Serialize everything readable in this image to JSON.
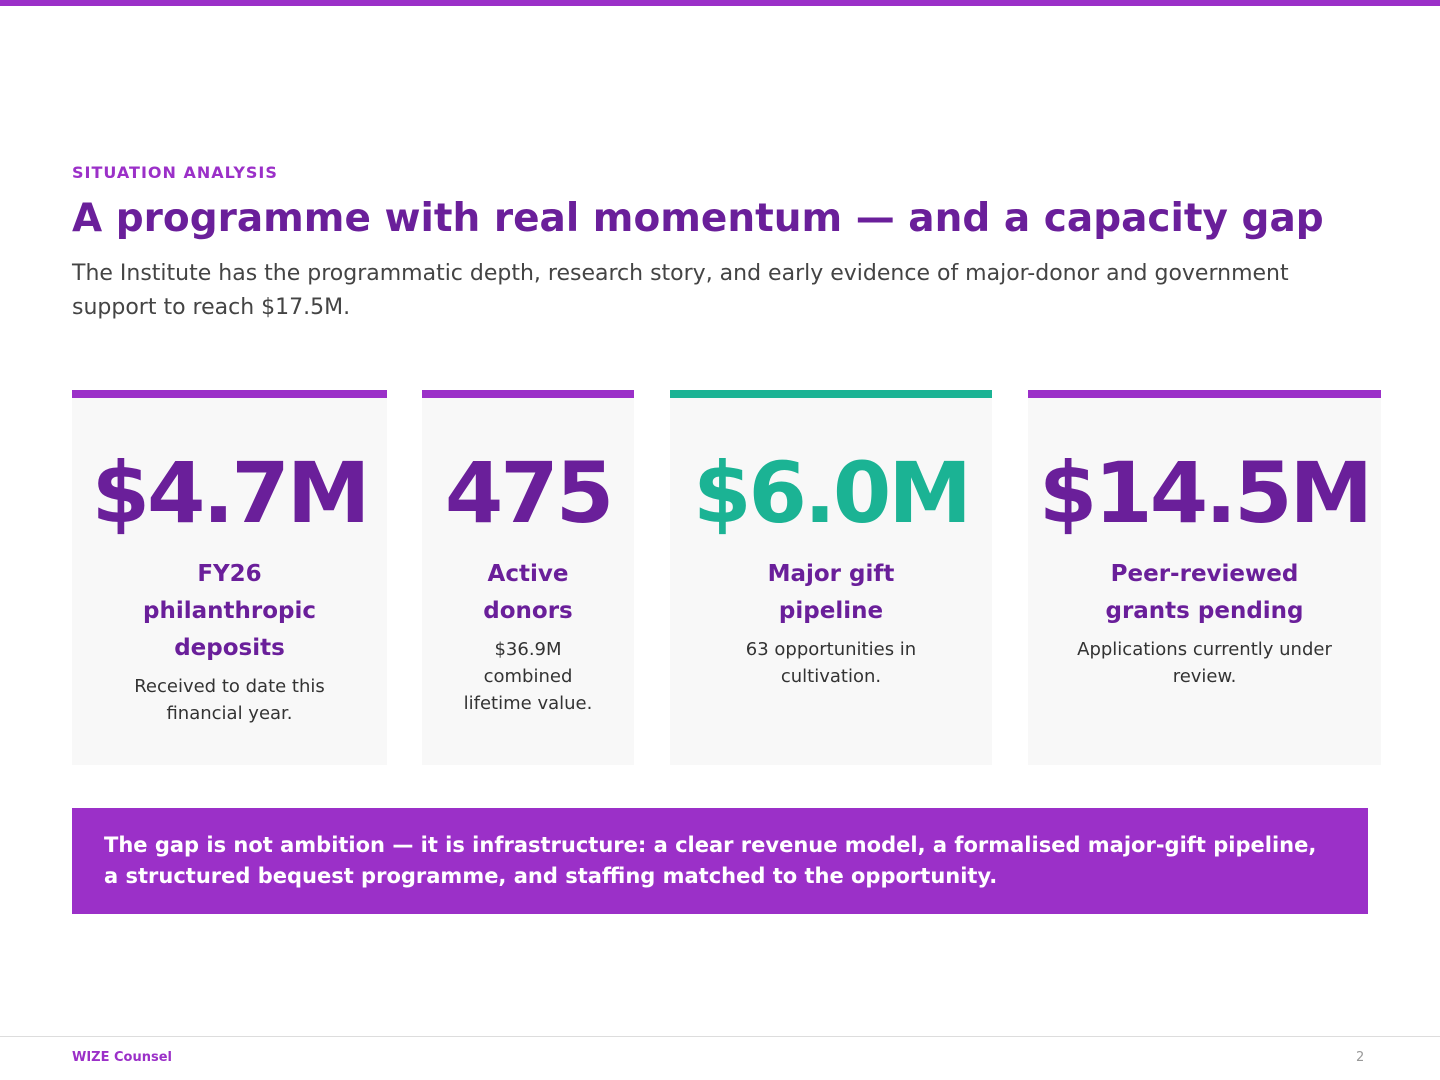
{
  "header": {
    "eyebrow": "SITUATION ANALYSIS",
    "title": "A programme with real momentum — and a capacity gap",
    "subtitle": "The Institute has the programmatic depth, research story, and early evidence of major-donor and government support to reach $17.5M."
  },
  "cards": [
    {
      "value": "$4.7M",
      "label": "FY26 philanthropic deposits",
      "note": "Received to date this financial year."
    },
    {
      "value": "475",
      "label": "Active donors",
      "note": "$36.9M combined lifetime value."
    },
    {
      "value": "$6.0M",
      "label": "Major gift pipeline",
      "note": "63 opportunities in cultivation."
    },
    {
      "value": "$14.5M",
      "label": "Peer-reviewed grants pending",
      "note": "Applications currently under review."
    }
  ],
  "callout": "The gap is not ambition — it is infrastructure: a clear revenue model, a formalised major-gift pipeline, a structured bequest programme, and staffing matched to the opportunity.",
  "footer": {
    "brand": "WIZE Counsel",
    "page": "2"
  }
}
